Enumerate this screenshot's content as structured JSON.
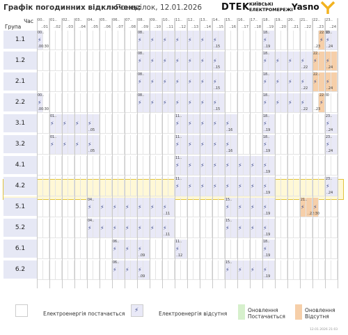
{
  "header": {
    "title": "Графік погодинних відключень:",
    "date": "Понеділок, 12.01.2026",
    "logo_dtek": "DTEK",
    "logo_kyiv_line1": "КИЇВСЬКІ",
    "logo_kyiv_line2": "ЕЛЕКТРОМЕРЕЖІ",
    "logo_yasno": "Yasno"
  },
  "corner": {
    "hour_label": "Час",
    "group_label": "Група"
  },
  "hours": [
    {
      "a": "00..",
      "b": "..01"
    },
    {
      "a": "01..",
      "b": "..02"
    },
    {
      "a": "02..",
      "b": "..03"
    },
    {
      "a": "03..",
      "b": "..04"
    },
    {
      "a": "04..",
      "b": "..05"
    },
    {
      "a": "05..",
      "b": "..06"
    },
    {
      "a": "06..",
      "b": "..07"
    },
    {
      "a": "07..",
      "b": "..08"
    },
    {
      "a": "08..",
      "b": "..09"
    },
    {
      "a": "09..",
      "b": "..10"
    },
    {
      "a": "10..",
      "b": "..11"
    },
    {
      "a": "11..",
      "b": "..12"
    },
    {
      "a": "12..",
      "b": "..13"
    },
    {
      "a": "13..",
      "b": "..14"
    },
    {
      "a": "14..",
      "b": "..15"
    },
    {
      "a": "15..",
      "b": "..16"
    },
    {
      "a": "16..",
      "b": "..17"
    },
    {
      "a": "17..",
      "b": "..18"
    },
    {
      "a": "18..",
      "b": "..19"
    },
    {
      "a": "19..",
      "b": "..20"
    },
    {
      "a": "20..",
      "b": "..21"
    },
    {
      "a": "21..",
      "b": "..22"
    },
    {
      "a": "22..",
      "b": "..23"
    },
    {
      "a": "23..",
      "b": "..24"
    }
  ],
  "groups": [
    {
      "name": "1.1",
      "off": [
        [
          0,
          1
        ],
        [
          16,
          30
        ],
        [
          36,
          38
        ],
        [
          46,
          48
        ]
      ],
      "green": [],
      "orange": [
        [
          45,
          46
        ]
      ]
    },
    {
      "name": "1.2",
      "off": [
        [
          16,
          30
        ],
        [
          36,
          44
        ]
      ],
      "green": [],
      "orange": [
        [
          44,
          48
        ]
      ]
    },
    {
      "name": "2.1",
      "off": [
        [
          16,
          30
        ],
        [
          36,
          44
        ]
      ],
      "green": [],
      "orange": [
        [
          44,
          48
        ]
      ]
    },
    {
      "name": "2.2",
      "off": [
        [
          0,
          1
        ],
        [
          16,
          30
        ],
        [
          36,
          44
        ]
      ],
      "green": [],
      "orange": [
        [
          45,
          46
        ]
      ]
    },
    {
      "name": "3.1",
      "off": [
        [
          2,
          10
        ],
        [
          22,
          32
        ],
        [
          36,
          38
        ],
        [
          46,
          48
        ]
      ],
      "green": [],
      "orange": []
    },
    {
      "name": "3.2",
      "off": [
        [
          2,
          10
        ],
        [
          22,
          32
        ],
        [
          36,
          38
        ],
        [
          46,
          48
        ]
      ],
      "green": [],
      "orange": []
    },
    {
      "name": "4.1",
      "off": [
        [
          22,
          38
        ]
      ],
      "green": [],
      "orange": []
    },
    {
      "name": "4.2",
      "off": [
        [
          22,
          38
        ],
        [
          46,
          48
        ]
      ],
      "green": [],
      "orange": []
    },
    {
      "name": "5.1",
      "off": [
        [
          8,
          22
        ],
        [
          30,
          38
        ]
      ],
      "green": [],
      "orange": [
        [
          42,
          45
        ]
      ]
    },
    {
      "name": "5.2",
      "off": [
        [
          8,
          22
        ],
        [
          30,
          38
        ]
      ],
      "green": [],
      "orange": []
    },
    {
      "name": "6.1",
      "off": [
        [
          12,
          18
        ],
        [
          22,
          24
        ],
        [
          36,
          38
        ]
      ],
      "green": [],
      "orange": []
    },
    {
      "name": "6.2",
      "off": [
        [
          12,
          18
        ],
        [
          30,
          38
        ]
      ],
      "green": [],
      "orange": []
    }
  ],
  "legend": {
    "power_on": "Електроенергія постачається",
    "power_off": "Електроенергія відсутня",
    "update_on_1": "Оновлення",
    "update_on_2": "Постачається",
    "update_off_1": "Оновлення",
    "update_off_2": "Відсутня"
  },
  "footer": "12.01.2026   21:03",
  "colors": {
    "off": "#e9e9f7",
    "green": "#d6f0cc",
    "orange": "#f6cfa9",
    "highlight": "#fff3b4",
    "label_bg": "#e6e8f5"
  },
  "highlighted_group": "4.2"
}
